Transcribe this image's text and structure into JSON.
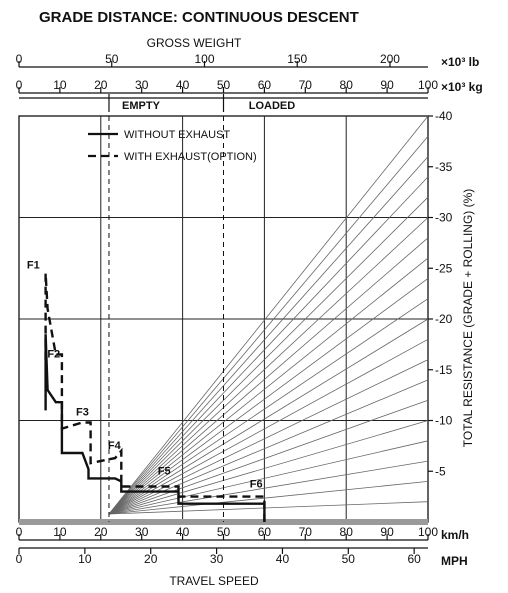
{
  "chart_data": {
    "type": "line",
    "title": "GRADE DISTANCE: CONTINUOUS DESCENT",
    "gross_weight_label": "GROSS WEIGHT",
    "weight_axis_lb": {
      "unit": "×10³ lb",
      "range": [
        0,
        220.5
      ],
      "ticks": [
        0,
        50,
        100,
        150,
        200
      ]
    },
    "weight_axis_kg": {
      "unit": "×10³ kg",
      "range": [
        0,
        100
      ],
      "ticks": [
        0,
        10,
        20,
        30,
        40,
        50,
        60,
        70,
        80,
        90,
        100
      ]
    },
    "empty_label": "EMPTY",
    "loaded_label": "LOADED",
    "empty_weight_kg": 22,
    "loaded_weight_kg": 50,
    "speed_axis_kmh": {
      "unit": "km/h",
      "range": [
        0,
        100
      ],
      "ticks": [
        0,
        10,
        20,
        30,
        40,
        50,
        60,
        70,
        80,
        90,
        100
      ]
    },
    "speed_axis_mph": {
      "unit": "MPH",
      "range": [
        0,
        62.1
      ],
      "ticks": [
        0,
        10,
        20,
        30,
        40,
        50,
        60
      ]
    },
    "xlabel": "TRAVEL SPEED",
    "ylabel": "TOTAL RESISTANCE (GRADE + ROLLING) (%)",
    "y_axis": {
      "range": [
        0,
        40
      ],
      "ticks": [
        5,
        10,
        15,
        20,
        25,
        30,
        35,
        40
      ]
    },
    "resistance_lines_pct": [
      2,
      4,
      6,
      8,
      10,
      12,
      14,
      16,
      18,
      20,
      22,
      24,
      26,
      28,
      30,
      32,
      34,
      36,
      38,
      40
    ],
    "legend": [
      {
        "label": "WITHOUT EXHAUST",
        "style": "solid"
      },
      {
        "label": "WITH EXHAUST(OPTION)",
        "style": "dashed"
      }
    ],
    "gear_labels": [
      {
        "name": "F1",
        "speed_kmh": 3.5,
        "pct": 25
      },
      {
        "name": "F2",
        "speed_kmh": 8.5,
        "pct": 16.2
      },
      {
        "name": "F3",
        "speed_kmh": 15.5,
        "pct": 10.5
      },
      {
        "name": "F4",
        "speed_kmh": 23.3,
        "pct": 7.2
      },
      {
        "name": "F5",
        "speed_kmh": 35.5,
        "pct": 4.7
      },
      {
        "name": "F6",
        "speed_kmh": 58,
        "pct": 3.4
      }
    ],
    "series": [
      {
        "name": "WITHOUT EXHAUST",
        "style": "solid",
        "points": [
          [
            6.5,
            11
          ],
          [
            6.5,
            18.5
          ],
          [
            7,
            13
          ],
          [
            9,
            11.8
          ],
          [
            10.5,
            11.8
          ],
          [
            10.5,
            6.8
          ],
          [
            15.5,
            6.8
          ],
          [
            17,
            5.2
          ],
          [
            17,
            4.3
          ],
          [
            23.5,
            4.3
          ],
          [
            25,
            4
          ],
          [
            25,
            3
          ],
          [
            39,
            3
          ],
          [
            39,
            1.8
          ],
          [
            60,
            1.8
          ],
          [
            60,
            0
          ]
        ]
      },
      {
        "name": "WITH EXHAUST(OPTION)",
        "style": "dashed",
        "points": [
          [
            6.5,
            16
          ],
          [
            6.5,
            24.5
          ],
          [
            7,
            21
          ],
          [
            9,
            16.5
          ],
          [
            10.5,
            16.5
          ],
          [
            10.5,
            9.2
          ],
          [
            15.5,
            9.8
          ],
          [
            17.5,
            9.8
          ],
          [
            17.5,
            5.8
          ],
          [
            23.5,
            6.3
          ],
          [
            25,
            7
          ],
          [
            25,
            3.5
          ],
          [
            39,
            3.5
          ],
          [
            39,
            2.5
          ],
          [
            60,
            2.5
          ],
          [
            60,
            0
          ]
        ]
      }
    ]
  }
}
